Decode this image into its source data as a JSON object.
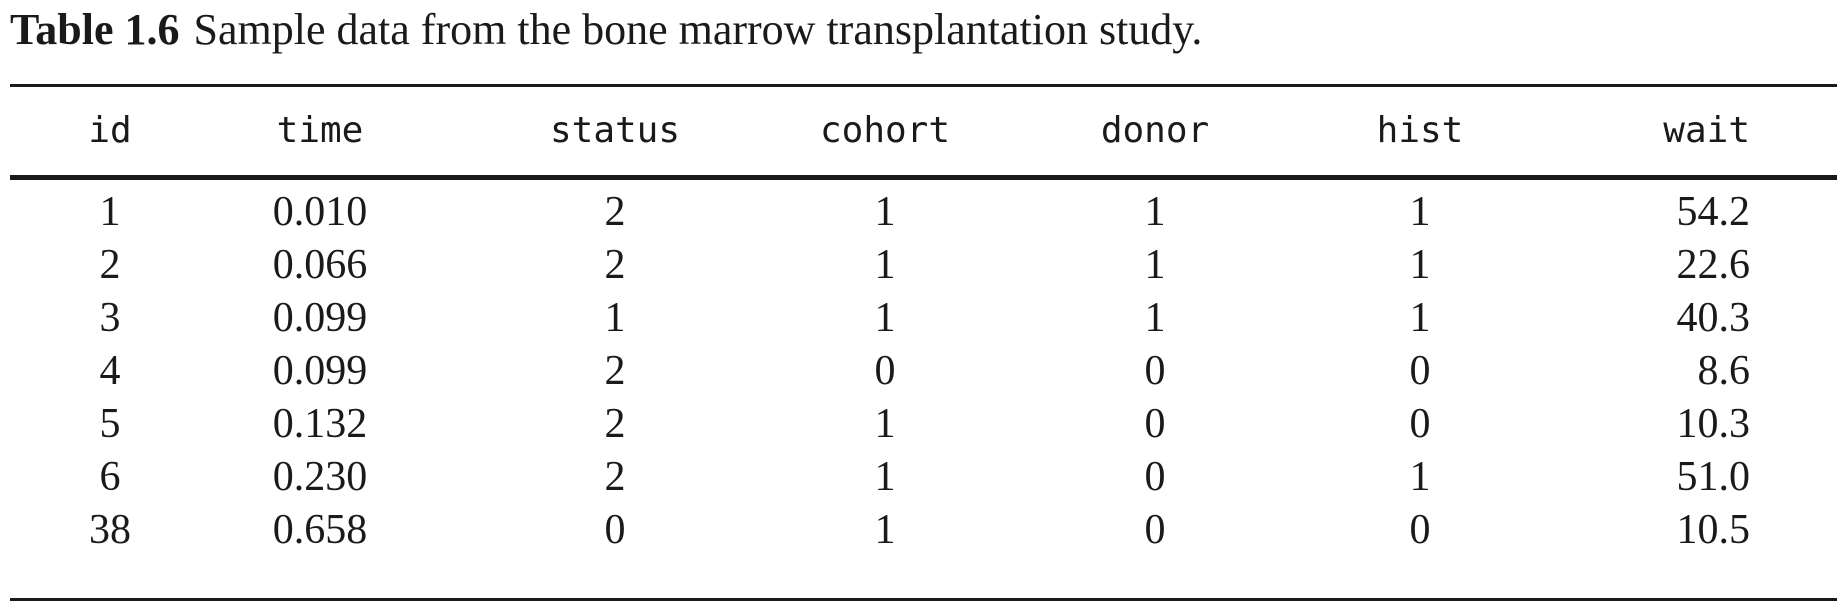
{
  "caption": {
    "label": "Table 1.6",
    "text": "Sample data from the bone marrow transplantation study."
  },
  "table": {
    "columns": [
      "id",
      "time",
      "status",
      "cohort",
      "donor",
      "hist",
      "wait"
    ],
    "rows": [
      [
        "1",
        "0.010",
        "2",
        "1",
        "1",
        "1",
        "54.2"
      ],
      [
        "2",
        "0.066",
        "2",
        "1",
        "1",
        "1",
        "22.6"
      ],
      [
        "3",
        "0.099",
        "1",
        "1",
        "1",
        "1",
        "40.3"
      ],
      [
        "4",
        "0.099",
        "2",
        "0",
        "0",
        "0",
        "8.6"
      ],
      [
        "5",
        "0.132",
        "2",
        "1",
        "0",
        "0",
        "10.3"
      ],
      [
        "6",
        "0.230",
        "2",
        "1",
        "0",
        "1",
        "51.0"
      ],
      [
        "38",
        "0.658",
        "0",
        "1",
        "0",
        "0",
        "10.5"
      ]
    ]
  }
}
